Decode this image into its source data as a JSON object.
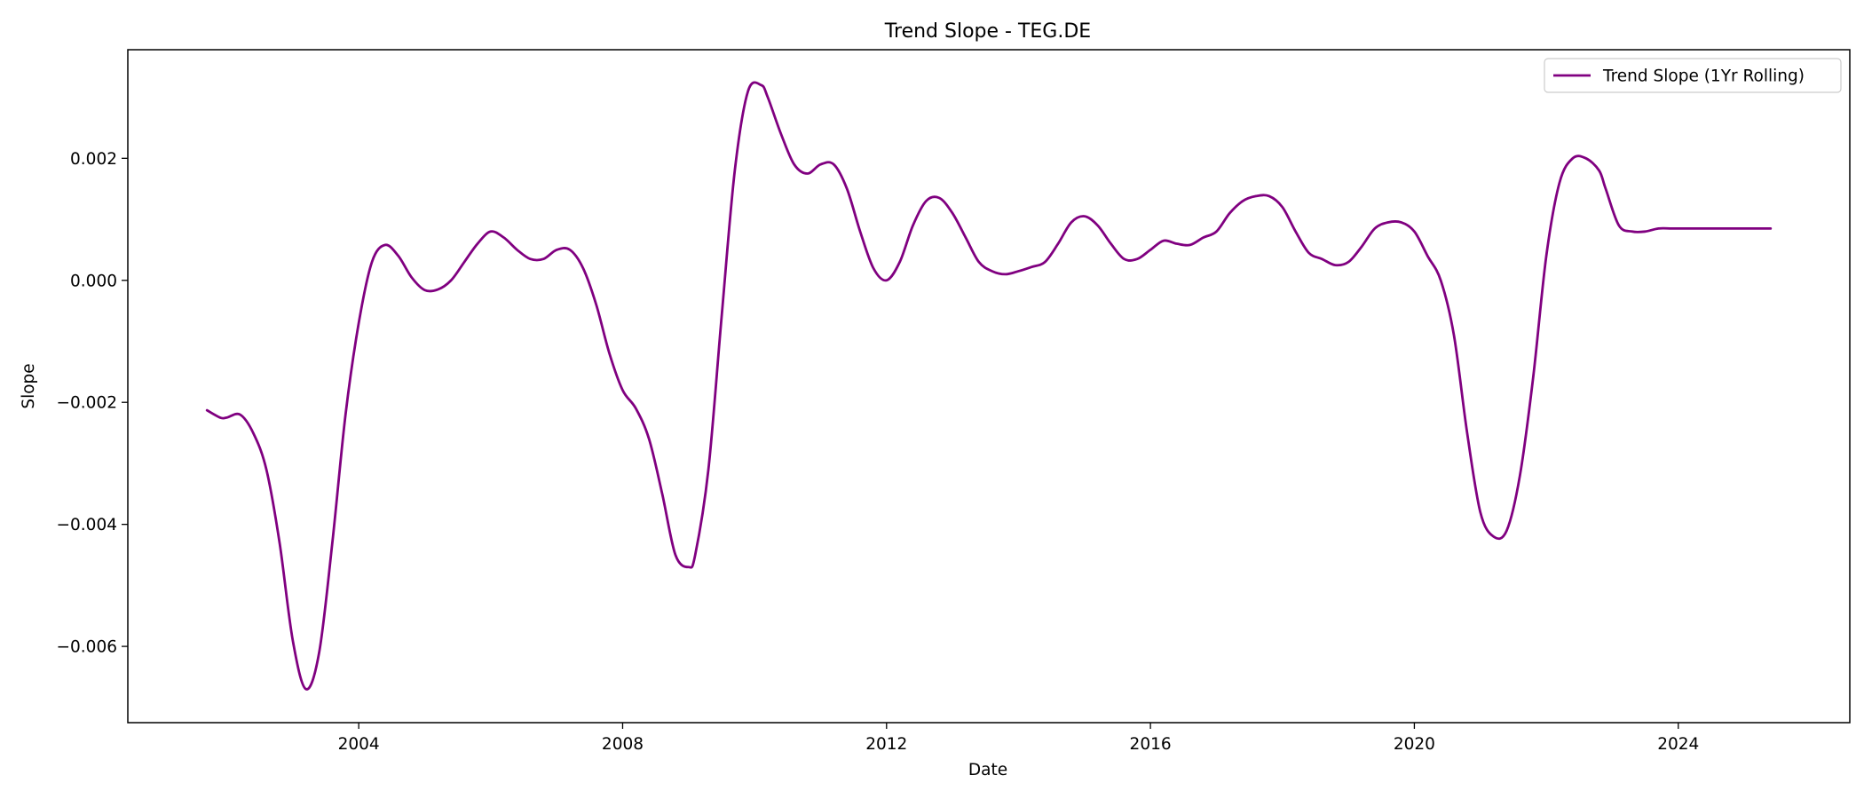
{
  "chart_data": {
    "type": "line",
    "title": "Trend Slope - TEG.DE",
    "xlabel": "Date",
    "ylabel": "Slope",
    "xlim": [
      2000.5,
      2026.6
    ],
    "ylim": [
      -0.00725,
      0.00378
    ],
    "grid": false,
    "legend_position": "top-right",
    "x_ticks": [
      {
        "value": 2004,
        "label": "2004"
      },
      {
        "value": 2008,
        "label": "2008"
      },
      {
        "value": 2012,
        "label": "2012"
      },
      {
        "value": 2016,
        "label": "2016"
      },
      {
        "value": 2020,
        "label": "2020"
      },
      {
        "value": 2024,
        "label": "2024"
      }
    ],
    "y_ticks": [
      {
        "value": 0.002,
        "label": "0.002"
      },
      {
        "value": 0.0,
        "label": "0.000"
      },
      {
        "value": -0.002,
        "label": "−0.002"
      },
      {
        "value": -0.004,
        "label": "−0.004"
      },
      {
        "value": -0.006,
        "label": "−0.006"
      }
    ],
    "series": [
      {
        "name": "Trend Slope (1Yr Rolling)",
        "color": "#800080",
        "x": [
          2001.7,
          2001.9,
          2002.0,
          2002.2,
          2002.4,
          2002.6,
          2002.8,
          2003.0,
          2003.2,
          2003.4,
          2003.6,
          2003.8,
          2004.0,
          2004.2,
          2004.4,
          2004.6,
          2004.8,
          2005.0,
          2005.2,
          2005.4,
          2005.6,
          2005.8,
          2006.0,
          2006.2,
          2006.4,
          2006.6,
          2006.8,
          2007.0,
          2007.2,
          2007.4,
          2007.6,
          2007.8,
          2008.0,
          2008.2,
          2008.4,
          2008.6,
          2008.8,
          2009.0,
          2009.1,
          2009.3,
          2009.5,
          2009.7,
          2009.9,
          2010.1,
          2010.2,
          2010.4,
          2010.6,
          2010.8,
          2011.0,
          2011.2,
          2011.4,
          2011.6,
          2011.8,
          2012.0,
          2012.2,
          2012.4,
          2012.6,
          2012.8,
          2013.0,
          2013.2,
          2013.4,
          2013.6,
          2013.8,
          2014.0,
          2014.2,
          2014.4,
          2014.6,
          2014.8,
          2015.0,
          2015.2,
          2015.4,
          2015.6,
          2015.8,
          2016.0,
          2016.2,
          2016.4,
          2016.6,
          2016.8,
          2017.0,
          2017.2,
          2017.4,
          2017.6,
          2017.8,
          2018.0,
          2018.2,
          2018.4,
          2018.6,
          2018.8,
          2019.0,
          2019.2,
          2019.4,
          2019.6,
          2019.8,
          2020.0,
          2020.2,
          2020.4,
          2020.6,
          2020.8,
          2021.0,
          2021.2,
          2021.4,
          2021.6,
          2021.8,
          2022.0,
          2022.2,
          2022.4,
          2022.6,
          2022.8,
          2022.9,
          2023.1,
          2023.3,
          2023.5,
          2023.7,
          2023.9,
          2024.1,
          2024.3,
          2024.5,
          2024.7,
          2024.9,
          2025.1,
          2025.3,
          2025.4
        ],
        "y": [
          -0.00213,
          -0.00225,
          -0.00225,
          -0.0022,
          -0.0025,
          -0.0031,
          -0.0043,
          -0.0059,
          -0.0067,
          -0.0061,
          -0.0043,
          -0.0022,
          -0.0007,
          0.0003,
          0.00058,
          0.0004,
          5e-05,
          -0.00016,
          -0.00015,
          0.0,
          0.0003,
          0.0006,
          0.0008,
          0.0007,
          0.0005,
          0.00035,
          0.00035,
          0.0005,
          0.0005,
          0.0002,
          -0.0004,
          -0.0012,
          -0.0018,
          -0.0021,
          -0.0026,
          -0.0035,
          -0.0045,
          -0.0047,
          -0.0045,
          -0.0031,
          -0.0006,
          0.0018,
          0.0031,
          0.0032,
          0.003,
          0.0024,
          0.0019,
          0.00175,
          0.0019,
          0.0019,
          0.0015,
          0.0008,
          0.0002,
          0.0,
          0.0003,
          0.0009,
          0.0013,
          0.00135,
          0.0011,
          0.0007,
          0.0003,
          0.00015,
          0.0001,
          0.00015,
          0.00022,
          0.0003,
          0.0006,
          0.00095,
          0.00105,
          0.0009,
          0.0006,
          0.00035,
          0.00035,
          0.0005,
          0.00065,
          0.0006,
          0.00058,
          0.0007,
          0.0008,
          0.0011,
          0.0013,
          0.00138,
          0.00138,
          0.0012,
          0.0008,
          0.00045,
          0.00035,
          0.00025,
          0.0003,
          0.00055,
          0.00085,
          0.00095,
          0.00095,
          0.0008,
          0.0004,
          0.0,
          -0.0009,
          -0.0025,
          -0.0038,
          -0.0042,
          -0.0041,
          -0.0032,
          -0.0016,
          0.0004,
          0.0016,
          0.002,
          0.002,
          0.0018,
          0.0015,
          0.0009,
          0.0008,
          0.0008,
          0.00085,
          0.00085,
          0.00085,
          0.00085,
          0.00085,
          0.00085,
          0.00085,
          0.00085,
          0.00085,
          0.00085
        ]
      }
    ]
  }
}
